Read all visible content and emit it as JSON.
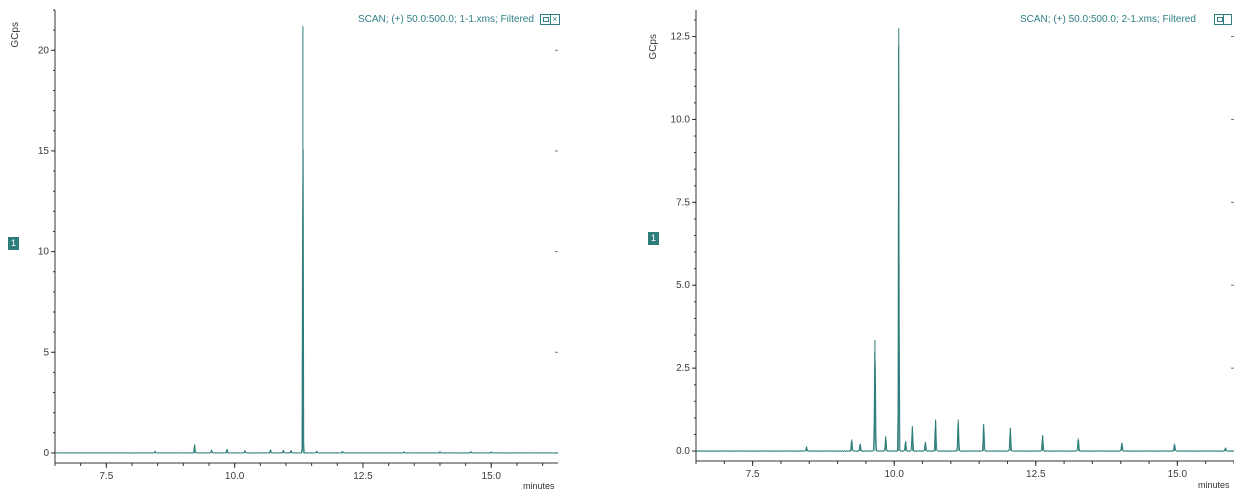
{
  "colors": {
    "trace": "#2e7d7a",
    "text": "#2f7f86",
    "badge": "#2e7d7a",
    "axis": "#333333"
  },
  "chart_data": [
    {
      "type": "line",
      "title": "SCAN;  (+) 50.0:500.0;  1-1.xms;  Filtered",
      "xlabel": "minutes",
      "ylabel": "GCps",
      "trace_badge": "1",
      "xlim": [
        6.5,
        16.3
      ],
      "ylim": [
        -0.5,
        22
      ],
      "x_ticks": [
        "7.5",
        "10.0",
        "12.5",
        "15.0"
      ],
      "y_ticks": [
        "0",
        "5",
        "10",
        "15",
        "20"
      ],
      "grid": false,
      "series": [
        {
          "peaks": [
            {
              "x": 8.45,
              "y": 0.08
            },
            {
              "x": 9.22,
              "y": 0.42
            },
            {
              "x": 9.55,
              "y": 0.14
            },
            {
              "x": 9.85,
              "y": 0.18
            },
            {
              "x": 10.2,
              "y": 0.12
            },
            {
              "x": 10.7,
              "y": 0.15
            },
            {
              "x": 10.95,
              "y": 0.13
            },
            {
              "x": 11.1,
              "y": 0.12
            },
            {
              "x": 11.33,
              "y": 21.2
            },
            {
              "x": 11.6,
              "y": 0.1
            },
            {
              "x": 12.1,
              "y": 0.08
            },
            {
              "x": 13.3,
              "y": 0.06
            },
            {
              "x": 14.0,
              "y": 0.06
            },
            {
              "x": 14.6,
              "y": 0.06
            },
            {
              "x": 15.0,
              "y": 0.05
            }
          ]
        }
      ]
    },
    {
      "type": "line",
      "title": "SCAN;  (+) 50.0:500.0;  2-1.xms;  Filtered",
      "xlabel": "minutes",
      "ylabel": "GCps",
      "trace_badge": "1",
      "xlim": [
        6.5,
        16.0
      ],
      "ylim": [
        -0.3,
        13.3
      ],
      "x_ticks": [
        "7.5",
        "10.0",
        "12.5",
        "15.0"
      ],
      "y_ticks": [
        "0.0",
        "2.5",
        "5.0",
        "7.5",
        "10.0",
        "12.5"
      ],
      "grid": false,
      "series": [
        {
          "peaks": [
            {
              "x": 8.45,
              "y": 0.12
            },
            {
              "x": 9.25,
              "y": 0.35
            },
            {
              "x": 9.4,
              "y": 0.22
            },
            {
              "x": 9.66,
              "y": 3.35
            },
            {
              "x": 9.85,
              "y": 0.45
            },
            {
              "x": 10.08,
              "y": 12.75
            },
            {
              "x": 10.2,
              "y": 0.3
            },
            {
              "x": 10.32,
              "y": 0.75
            },
            {
              "x": 10.55,
              "y": 0.28
            },
            {
              "x": 10.73,
              "y": 0.95
            },
            {
              "x": 11.13,
              "y": 0.95
            },
            {
              "x": 11.58,
              "y": 0.82
            },
            {
              "x": 12.05,
              "y": 0.7
            },
            {
              "x": 12.62,
              "y": 0.48
            },
            {
              "x": 13.25,
              "y": 0.38
            },
            {
              "x": 14.02,
              "y": 0.25
            },
            {
              "x": 14.95,
              "y": 0.22
            },
            {
              "x": 15.85,
              "y": 0.1
            }
          ]
        }
      ]
    }
  ]
}
